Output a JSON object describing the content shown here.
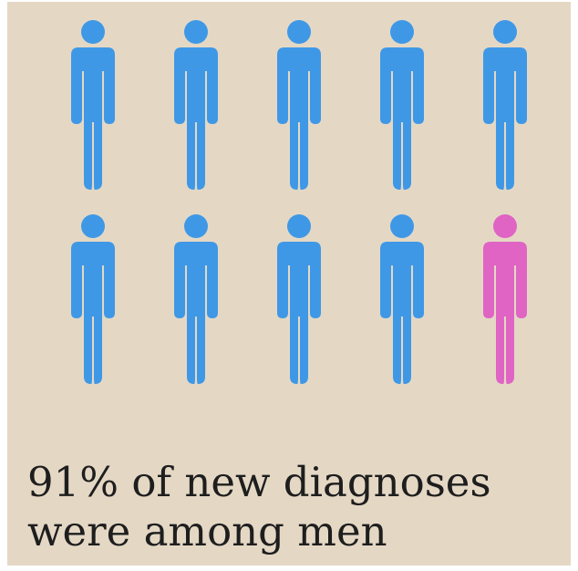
{
  "infographic": {
    "figures": {
      "total": 10,
      "highlighted_count": 9,
      "highlighted_label": "men",
      "highlight_color": "#3f98e6",
      "other_color": "#e064c4",
      "icon": "person-icon"
    },
    "caption": {
      "line1": "91% of new diagnoses",
      "line2": "were among men"
    },
    "background_color": "#e4d8c5"
  }
}
